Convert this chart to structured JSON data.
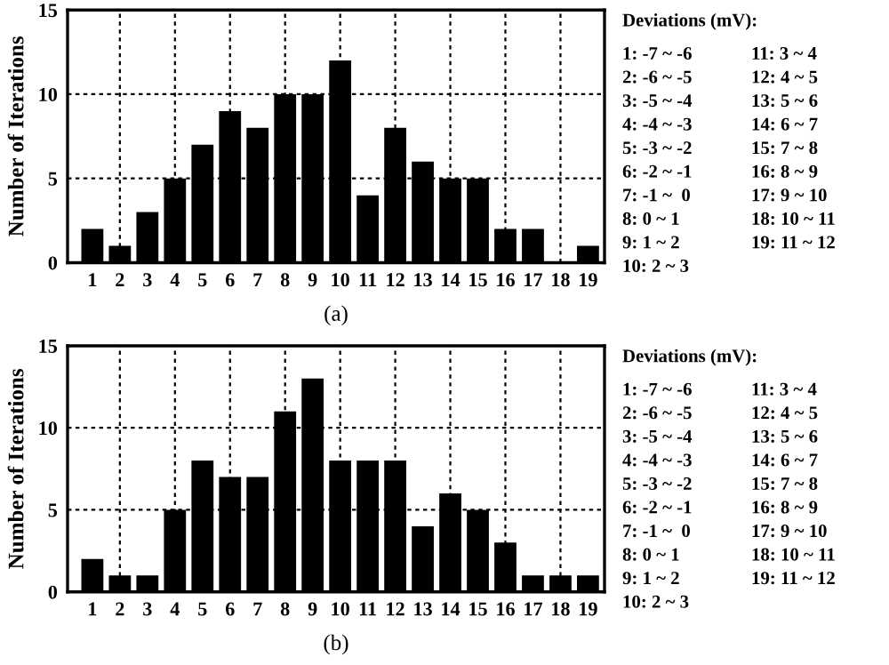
{
  "chart_data": [
    {
      "type": "bar",
      "xlabel": "(a)",
      "ylabel": "Number of Iterations",
      "categories": [
        "1",
        "2",
        "3",
        "4",
        "5",
        "6",
        "7",
        "8",
        "9",
        "10",
        "11",
        "12",
        "13",
        "14",
        "15",
        "16",
        "17",
        "18",
        "19"
      ],
      "values": [
        2,
        1,
        3,
        5,
        7,
        9,
        8,
        10,
        10,
        12,
        4,
        8,
        6,
        5,
        5,
        2,
        2,
        0,
        1
      ],
      "color": "#000000",
      "ylim": [
        0,
        15
      ],
      "yticks": [
        0,
        5,
        10,
        15
      ],
      "grid": true,
      "annotations": [
        "Deviations (mV):",
        "1: -7 ~ -6",
        "2: -6 ~ -5",
        "3: -5 ~ -4",
        "4: -4 ~ -3",
        "5: -3 ~ -2",
        "6: -2 ~ -1",
        "7: -1 ~  0",
        "8: 0 ~ 1",
        "9: 1 ~ 2",
        "10: 2 ~ 3",
        "11: 3 ~ 4",
        "12: 4 ~ 5",
        "13: 5 ~ 6",
        "14: 6 ~ 7",
        "15: 7 ~ 8",
        "16: 8 ~ 9",
        "17: 9 ~ 10",
        "18: 10 ~ 11",
        "19: 11 ~ 12"
      ]
    },
    {
      "type": "bar",
      "xlabel": "(b)",
      "ylabel": "Number of Iterations",
      "categories": [
        "1",
        "2",
        "3",
        "4",
        "5",
        "6",
        "7",
        "8",
        "9",
        "10",
        "11",
        "12",
        "13",
        "14",
        "15",
        "16",
        "17",
        "18",
        "19"
      ],
      "values": [
        2,
        1,
        1,
        5,
        8,
        7,
        7,
        11,
        13,
        8,
        8,
        8,
        4,
        6,
        5,
        3,
        1,
        1,
        1
      ],
      "color": "#000000",
      "ylim": [
        0,
        15
      ],
      "yticks": [
        0,
        5,
        10,
        15
      ],
      "grid": true,
      "annotations": [
        "Deviations (mV):",
        "1: -7 ~ -6",
        "2: -6 ~ -5",
        "3: -5 ~ -4",
        "4: -4 ~ -3",
        "5: -3 ~ -2",
        "6: -2 ~ -1",
        "7: -1 ~  0",
        "8: 0 ~ 1",
        "9: 1 ~ 2",
        "10: 2 ~ 3",
        "11: 3 ~ 4",
        "12: 4 ~ 5",
        "13: 5 ~ 6",
        "14: 6 ~ 7",
        "15: 7 ~ 8",
        "16: 8 ~ 9",
        "17: 9 ~ 10",
        "18: 10 ~ 11",
        "19: 11 ~ 12"
      ]
    }
  ]
}
